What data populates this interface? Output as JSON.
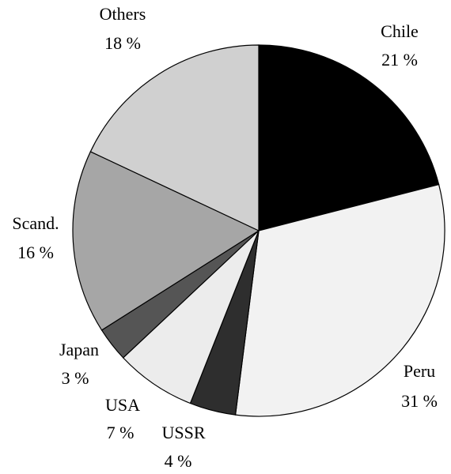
{
  "chart_data": {
    "type": "pie",
    "categories": [
      "Chile",
      "Peru",
      "USSR",
      "USA",
      "Japan",
      "Scand.",
      "Others"
    ],
    "values": [
      21,
      31,
      4,
      7,
      3,
      16,
      18
    ],
    "value_labels": [
      "21 %",
      "31 %",
      "4 %",
      "7 %",
      "3 %",
      "16 %",
      "18 %"
    ],
    "colors": [
      "#000000",
      "#f2f2f2",
      "#2e2e2e",
      "#ececec",
      "#555555",
      "#a6a6a6",
      "#d0d0d0"
    ]
  }
}
